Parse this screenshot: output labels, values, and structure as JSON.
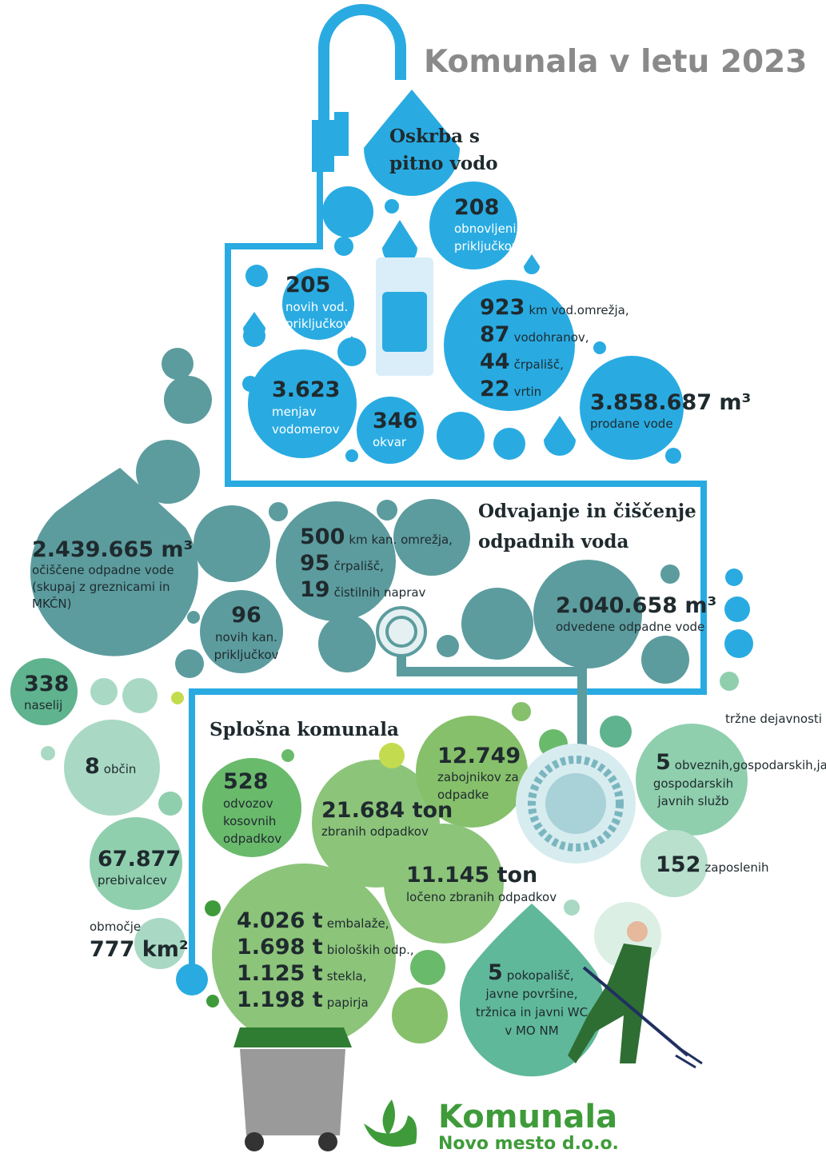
{
  "title": "Komunala v letu 2023",
  "water": {
    "heading": [
      "Oskrba s",
      "pitno vodo"
    ],
    "renewed": {
      "value": "208",
      "label": [
        "obnovljenih vod.",
        "priključkov"
      ]
    },
    "new": {
      "value": "205",
      "label": [
        "novih vod.",
        "priključkov"
      ]
    },
    "network": [
      {
        "value": "923",
        "label": "km vod.omrežja,"
      },
      {
        "value": "87",
        "label": "vodohranov,"
      },
      {
        "value": "44",
        "label": "črpališč,"
      },
      {
        "value": "22",
        "label": "vrtin"
      }
    ],
    "meters": {
      "value": "3.623",
      "label": [
        "menjav",
        "vodomerov"
      ]
    },
    "failures": {
      "value": "346",
      "label": [
        "okvar"
      ]
    },
    "sold": {
      "value": "3.858.687 m³",
      "label": [
        "prodane vode"
      ]
    }
  },
  "wastewater": {
    "heading": [
      "Odvajanje in čiščenje",
      "odpadnih voda"
    ],
    "cleaned": {
      "value": "2.439.665 m³",
      "label": [
        "očiščene odpadne vode",
        "(skupaj z greznicami in",
        "MKČN)"
      ]
    },
    "network": [
      {
        "value": "500",
        "label": "km kan. omrežja,"
      },
      {
        "value": "95",
        "label": "črpališč,"
      },
      {
        "value": "19",
        "label": "čistilnih naprav"
      }
    ],
    "new": {
      "value": "96",
      "label": [
        "novih kan.",
        "priključkov"
      ]
    },
    "drained": {
      "value": "2.040.658 m³",
      "label": [
        "odvedene odpadne vode"
      ]
    }
  },
  "general": {
    "heading": "Splošna komunala",
    "settlements": {
      "value": "338",
      "label": [
        "naselij"
      ]
    },
    "municipalities": {
      "value": "8",
      "label": "občin"
    },
    "population": {
      "value": "67.877",
      "label": [
        "prebivalcev"
      ]
    },
    "area": {
      "label": "območje",
      "value": "777 km²"
    },
    "bulky": {
      "value": "528",
      "label": [
        "odvozov",
        "kosovnih",
        "odpadkov"
      ]
    },
    "collected": {
      "value": "21.684 ton",
      "label": [
        "zbranih odpadkov"
      ]
    },
    "containers": {
      "value": "12.749",
      "label": [
        "zabojnikov za",
        "odpadke"
      ]
    },
    "separated": {
      "value": "11.145 ton",
      "label": [
        "ločeno zbranih odpadkov"
      ]
    },
    "fractions": [
      {
        "value": "4.026 t",
        "label": "embalaže,"
      },
      {
        "value": "1.698 t",
        "label": "bioloških odp.,"
      },
      {
        "value": "1.125 t",
        "label": "stekla,"
      },
      {
        "value": "1.198 t",
        "label": "papirja"
      }
    ],
    "cemeteries": {
      "value": "5",
      "label": [
        "pokopališč,",
        "javne površine,",
        "tržnica in javni WC",
        "v MO NM"
      ]
    },
    "market": "tržne dejavnosti",
    "services": {
      "value": "5",
      "label": [
        "obveznih",
        "gospodarskih",
        "javnih služb"
      ]
    },
    "employees": {
      "value": "152",
      "label": "zaposlenih"
    }
  },
  "logo": {
    "name": "Komunala",
    "sub": "Novo mesto d.o.o."
  }
}
